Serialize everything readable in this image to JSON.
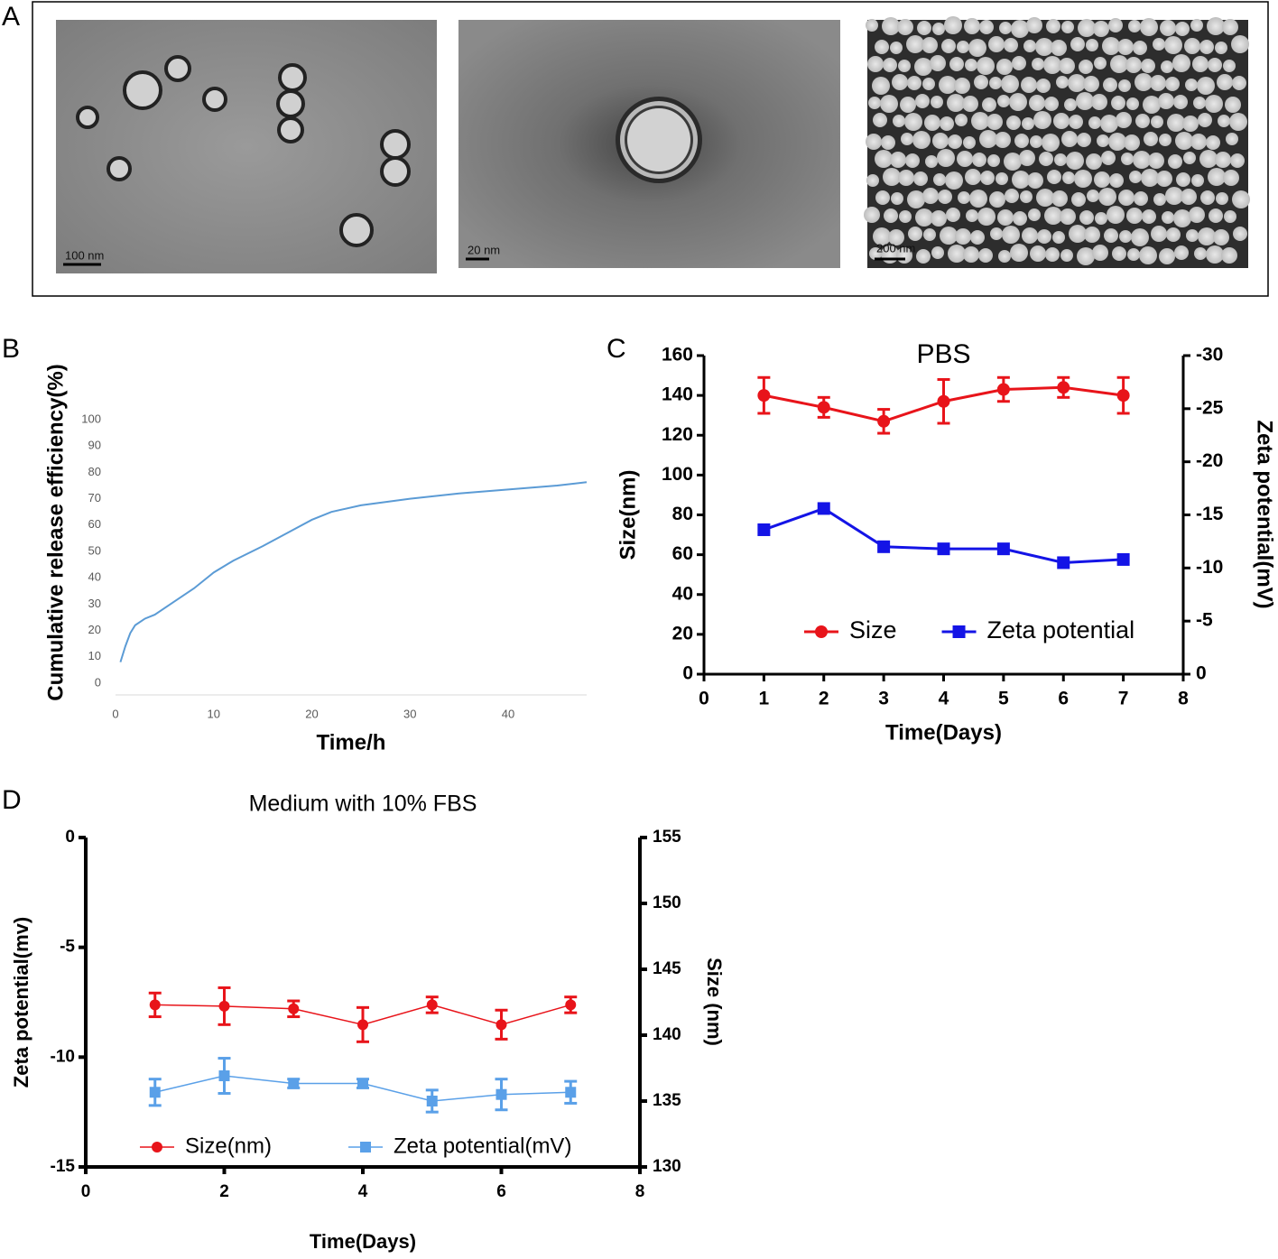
{
  "panel_labels": [
    "A",
    "B",
    "C",
    "D"
  ],
  "micrographs": [
    {
      "scale_bar": "100 nm"
    },
    {
      "scale_bar": "20 nm"
    },
    {
      "scale_bar": "200 nm"
    }
  ],
  "chart_data": [
    {
      "type": "line",
      "y_label": "Cumulative release efficiency(%)",
      "x_label": "Time/h",
      "x": [
        0.5,
        1,
        1.5,
        2,
        3,
        4,
        6,
        8,
        10,
        12,
        15,
        18,
        20,
        22,
        25,
        30,
        35,
        40,
        45,
        48
      ],
      "values": [
        8,
        14,
        19,
        22,
        24.5,
        26,
        31,
        36,
        42,
        46.5,
        52,
        58,
        62,
        65,
        67.5,
        70,
        72,
        73.5,
        75,
        76.3
      ],
      "color": "#5b9bd5",
      "xlim": [
        0,
        48
      ],
      "xticks": [
        0,
        10,
        20,
        30,
        40
      ],
      "ylim": [
        0,
        100
      ],
      "yticks": [
        0,
        10,
        20,
        30,
        40,
        50,
        60,
        70,
        80,
        90,
        100
      ]
    },
    {
      "type": "line",
      "title": "PBS",
      "x_label": "Time(Days)",
      "y_label": "Size(nm)",
      "y2_label": "Zeta potential(mV)",
      "x": [
        1,
        2,
        3,
        4,
        5,
        6,
        7
      ],
      "series": [
        {
          "name": "Size",
          "color": "#e8141a",
          "marker": "circle",
          "values": [
            140,
            134,
            127,
            137,
            143,
            144,
            140
          ],
          "errors": [
            9,
            5,
            6,
            11,
            6,
            5,
            9
          ]
        },
        {
          "name": "Zeta potential",
          "color": "#1414e6",
          "marker": "square",
          "axis": "y2",
          "values": [
            -13.6,
            -15.6,
            -12.0,
            -11.8,
            -11.8,
            -10.5,
            -10.8
          ]
        }
      ],
      "xlim": [
        0,
        8
      ],
      "xticks": [
        0,
        1,
        2,
        3,
        4,
        5,
        6,
        7,
        8
      ],
      "ylim": [
        0,
        160
      ],
      "yticks": [
        0,
        20,
        40,
        60,
        80,
        100,
        120,
        140,
        160
      ],
      "y2lim": [
        0,
        -30
      ],
      "y2ticks": [
        0,
        -5,
        -10,
        -15,
        -20,
        -25,
        -30
      ],
      "legend": "lower right"
    },
    {
      "type": "line",
      "title": "Medium with 10% FBS",
      "x_label": "Time(Days)",
      "y_label": "Zeta potential(mv)",
      "y2_label": "Size (nm)",
      "x": [
        1,
        2,
        3,
        4,
        5,
        6,
        7
      ],
      "series": [
        {
          "name": "Size(nm)",
          "color": "#e8141a",
          "marker": "circle",
          "axis": "y2",
          "values": [
            142.3,
            142.2,
            142.0,
            140.8,
            142.3,
            140.8,
            142.3
          ],
          "errors": [
            0.9,
            1.4,
            0.6,
            1.3,
            0.6,
            1.1,
            0.6
          ]
        },
        {
          "name": "Zeta potential(mV)",
          "color": "#5aa0e8",
          "marker": "square",
          "values": [
            -11.6,
            -10.85,
            -11.2,
            -11.2,
            -12.0,
            -11.7,
            -11.6
          ],
          "errors": [
            0.6,
            0.8,
            0.2,
            0.2,
            0.5,
            0.7,
            0.5
          ]
        }
      ],
      "xlim": [
        0,
        8
      ],
      "xticks": [
        0,
        2,
        4,
        6,
        8
      ],
      "ylim": [
        -15,
        0
      ],
      "yticks": [
        -15,
        -10,
        -5,
        0
      ],
      "y2lim": [
        130,
        155
      ],
      "y2ticks": [
        130,
        135,
        140,
        145,
        150,
        155
      ],
      "legend": "lower left"
    }
  ]
}
